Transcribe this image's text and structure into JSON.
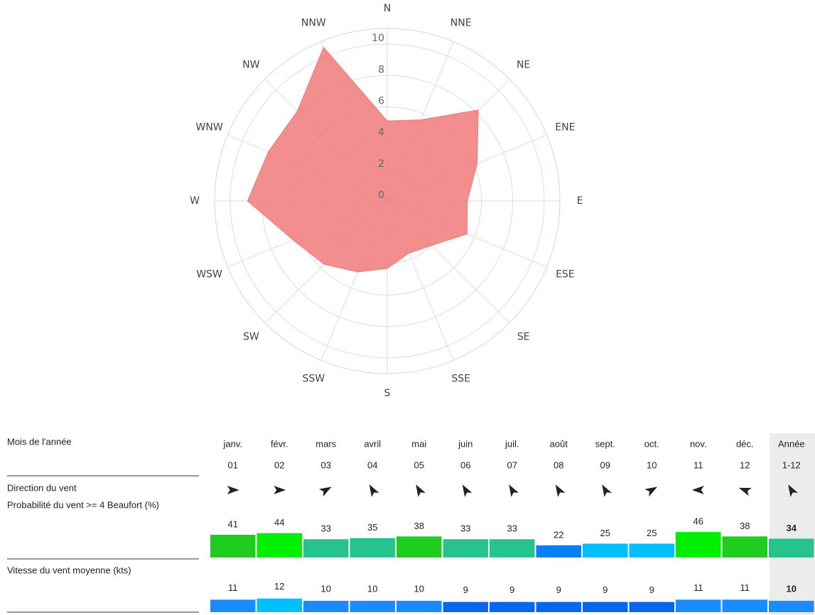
{
  "chart_data": {
    "type": "radar",
    "categories": [
      "N",
      "NNE",
      "NE",
      "ENE",
      "E",
      "ESE",
      "SE",
      "SSE",
      "S",
      "SSW",
      "SW",
      "WSW",
      "W",
      "WNW",
      "NW",
      "NNW"
    ],
    "values": [
      5.1,
      5.6,
      8.2,
      6.2,
      5.1,
      5.5,
      4.0,
      3.6,
      4.3,
      4.9,
      5.7,
      6.5,
      8.9,
      8.2,
      8.1,
      10.6
    ],
    "color": "#f07a7a",
    "rlim": [
      0,
      11
    ],
    "rticks": [
      0,
      2,
      4,
      6,
      8,
      10
    ],
    "grid": true
  },
  "table": {
    "row_header": "Mois de l'année",
    "months": [
      "janv.",
      "févr.",
      "mars",
      "avril",
      "mai",
      "juin",
      "juil.",
      "août",
      "sept.",
      "oct.",
      "nov.",
      "déc.",
      "Année"
    ],
    "numbers": [
      "01",
      "02",
      "03",
      "04",
      "05",
      "06",
      "07",
      "08",
      "09",
      "10",
      "11",
      "12",
      "1-12"
    ],
    "direction_label": "Direction du vent",
    "direction_deg": [
      90,
      90,
      60,
      330,
      330,
      330,
      330,
      330,
      330,
      60,
      270,
      290,
      330
    ],
    "probability_label": "Probabilité du vent >= 4 Beaufort  (%)",
    "probability": [
      41,
      44,
      33,
      35,
      38,
      33,
      33,
      22,
      25,
      25,
      46,
      38,
      34
    ],
    "probability_colors": [
      "#1fcc1f",
      "#00ee00",
      "#26c48c",
      "#26c48c",
      "#1fcc1f",
      "#26c48c",
      "#26c48c",
      "#0a7ff5",
      "#00bfff",
      "#00bfff",
      "#00ee00",
      "#1fcc1f",
      "#26c48c"
    ],
    "speed_label": "Vitesse du vent moyenne  (kts)",
    "speed": [
      11,
      12,
      10,
      10,
      10,
      9,
      9,
      9,
      9,
      9,
      11,
      11,
      10
    ],
    "speed_colors": [
      "#1a8cff",
      "#00bfff",
      "#1a8cff",
      "#1a8cff",
      "#1a8cff",
      "#0a66ee",
      "#0a66ee",
      "#0a66ee",
      "#0a66ee",
      "#0a66ee",
      "#1a8cff",
      "#1a8cff",
      "#1a8cff"
    ]
  }
}
